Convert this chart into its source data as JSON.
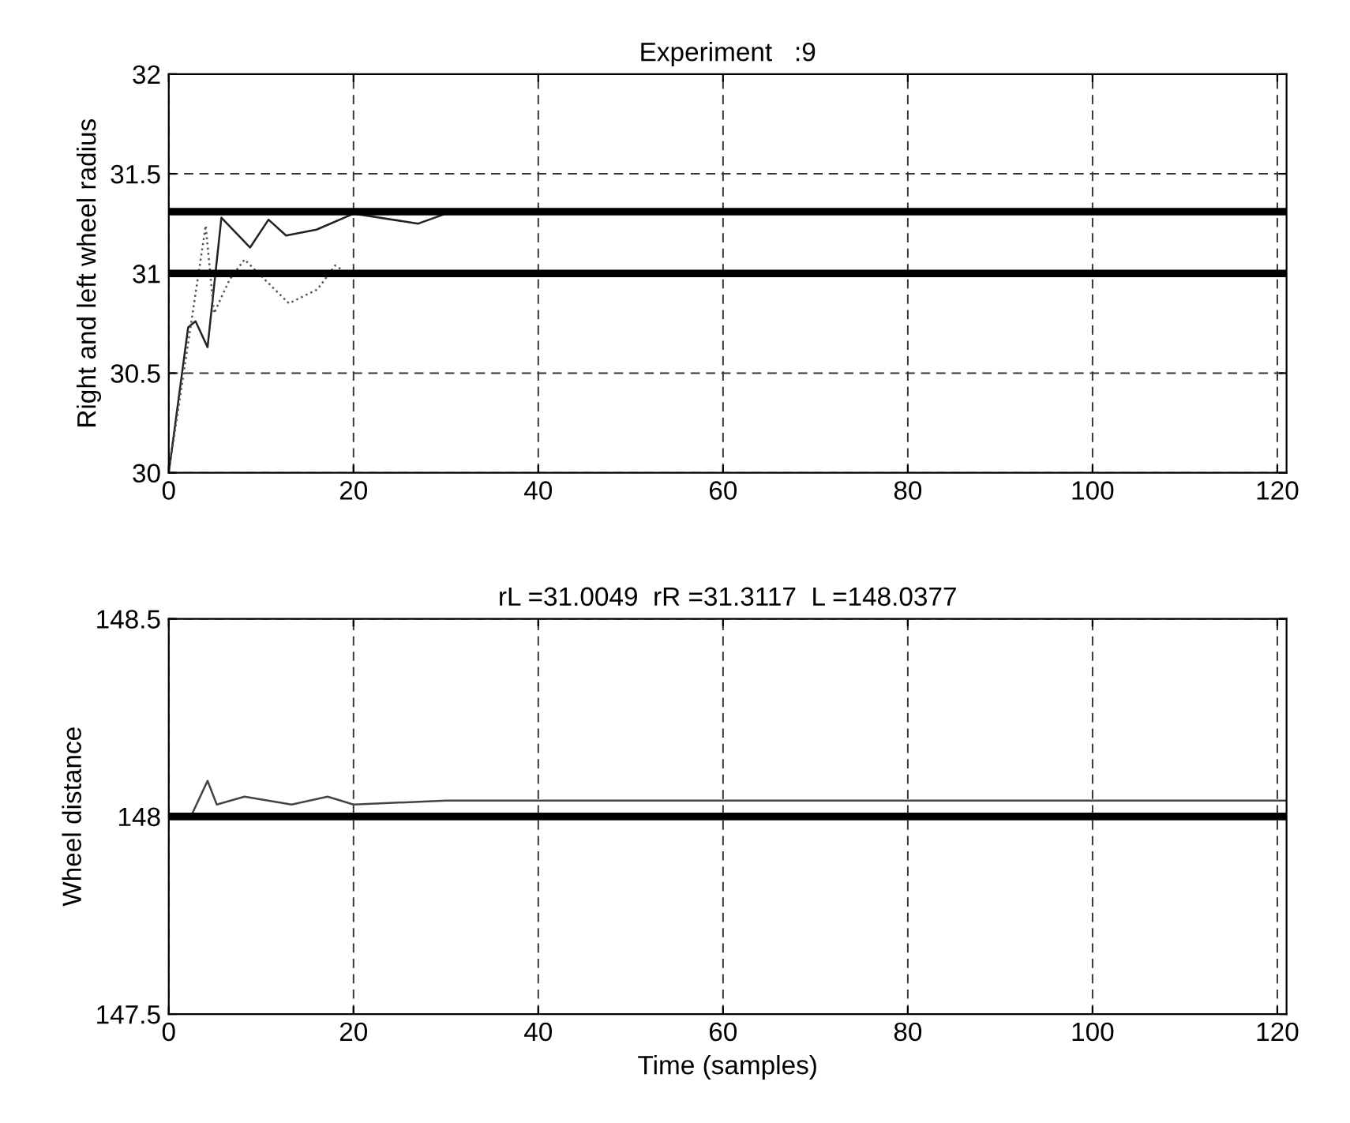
{
  "chart_data": [
    {
      "type": "line",
      "title": "Experiment   :9",
      "ylabel": "Right and left wheel radius",
      "xlim": [
        0,
        121
      ],
      "xticks": [
        0,
        20,
        40,
        60,
        80,
        100,
        120
      ],
      "ylim": [
        30,
        32
      ],
      "yticks": [
        30,
        30.5,
        31,
        31.5,
        32
      ],
      "grid": true,
      "legend": false,
      "series": [
        {
          "color": "#222222",
          "line_style": "solid",
          "x": [
            0,
            2.1,
            2.9,
            4.2,
            5.7,
            8.8,
            10.8,
            12.7,
            16,
            20,
            27,
            30
          ],
          "values": [
            30,
            30.73,
            30.76,
            30.63,
            31.28,
            31.13,
            31.27,
            31.19,
            31.22,
            31.3,
            31.25,
            31.3
          ]
        },
        {
          "color": "#555555",
          "line_style": "dotted",
          "x": [
            0,
            4,
            4.9,
            6.6,
            8.2,
            13,
            16.1,
            18,
            19.4
          ],
          "values": [
            30,
            31.24,
            30.8,
            30.97,
            31.07,
            30.85,
            30.92,
            31.04,
            31.0
          ]
        }
      ],
      "ref_lines": [
        {
          "axis": "y",
          "value": 31.31,
          "color": "#000000"
        },
        {
          "axis": "y",
          "value": 31.0,
          "color": "#000000"
        }
      ]
    },
    {
      "type": "line",
      "title": "rL =31.0049  rR =31.3117  L =148.0377",
      "xlabel": "Time (samples)",
      "ylabel": "Wheel distance",
      "xlim": [
        0,
        121
      ],
      "xticks": [
        0,
        20,
        40,
        60,
        80,
        100,
        120
      ],
      "ylim": [
        147.5,
        148.5
      ],
      "yticks": [
        147.5,
        148,
        148.5
      ],
      "grid": true,
      "legend": false,
      "series": [
        {
          "color": "#444444",
          "line_style": "solid",
          "x": [
            0,
            2.4,
            4.2,
            5.2,
            8.2,
            13.3,
            17.2,
            20,
            30,
            40,
            60,
            80,
            100,
            121
          ],
          "values": [
            148.0,
            148.0,
            148.09,
            148.03,
            148.05,
            148.03,
            148.05,
            148.03,
            148.04,
            148.04,
            148.04,
            148.04,
            148.04,
            148.04
          ]
        }
      ],
      "ref_lines": [
        {
          "axis": "y",
          "value": 148,
          "color": "#000000"
        }
      ]
    }
  ]
}
